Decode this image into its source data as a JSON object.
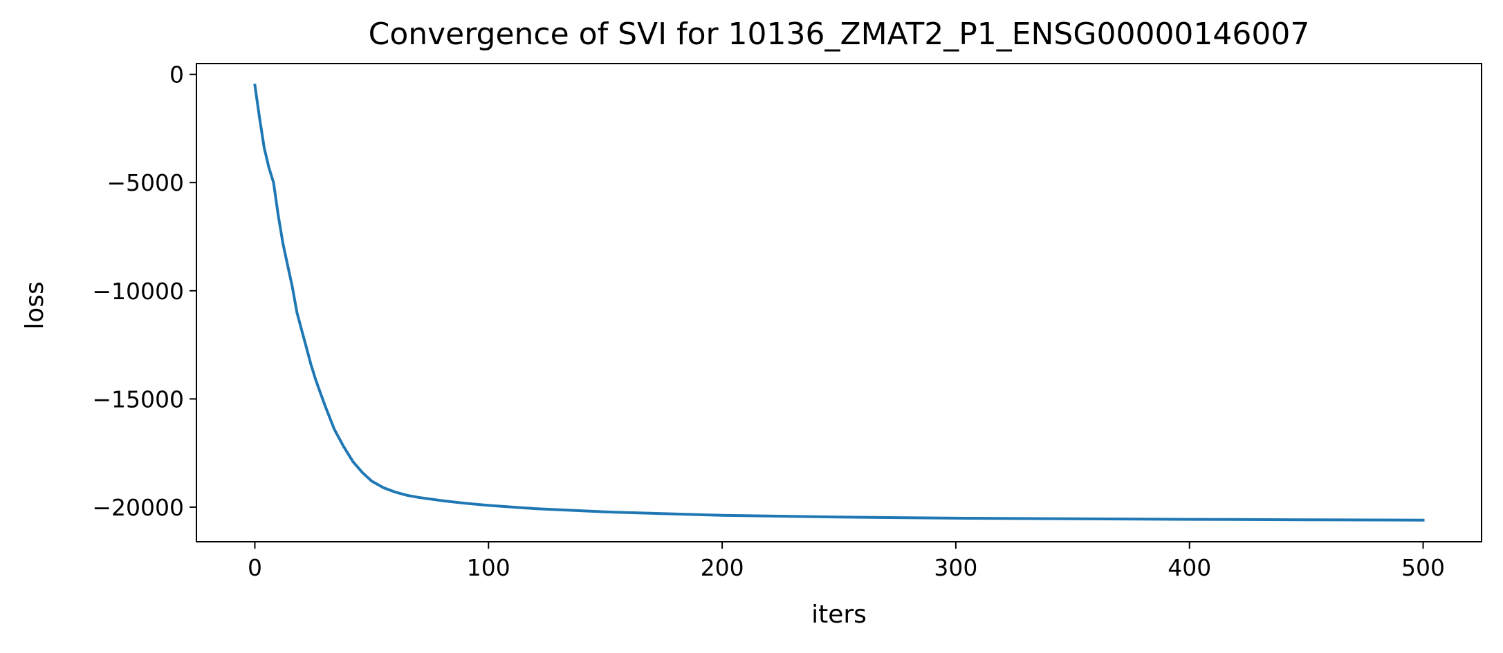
{
  "chart_data": {
    "type": "line",
    "title": "Convergence of SVI for 10136_ZMAT2_P1_ENSG00000146007",
    "xlabel": "iters",
    "ylabel": "loss",
    "xlim": [
      -25,
      525
    ],
    "ylim": [
      -21600,
      500
    ],
    "x_ticks": [
      0,
      100,
      200,
      300,
      400,
      500
    ],
    "x_tick_labels": [
      "0",
      "100",
      "200",
      "300",
      "400",
      "500"
    ],
    "y_ticks": [
      0,
      -5000,
      -10000,
      -15000,
      -20000
    ],
    "y_tick_labels": [
      "0",
      "−5000",
      "−10000",
      "−15000",
      "−20000"
    ],
    "grid": false,
    "legend": "none",
    "series": [
      {
        "color": "#1f77b4",
        "x": [
          0,
          2,
          4,
          6,
          8,
          10,
          12,
          14,
          16,
          18,
          20,
          22,
          24,
          26,
          28,
          30,
          34,
          38,
          42,
          46,
          50,
          55,
          60,
          65,
          70,
          80,
          90,
          100,
          120,
          150,
          200,
          250,
          300,
          350,
          400,
          450,
          500
        ],
        "y": [
          -500,
          -2000,
          -3400,
          -4300,
          -5000,
          -6500,
          -7800,
          -8800,
          -9800,
          -11000,
          -11800,
          -12600,
          -13400,
          -14100,
          -14700,
          -15300,
          -16400,
          -17200,
          -17900,
          -18400,
          -18800,
          -19100,
          -19300,
          -19450,
          -19550,
          -19700,
          -19820,
          -19920,
          -20070,
          -20220,
          -20380,
          -20460,
          -20510,
          -20540,
          -20565,
          -20585,
          -20600
        ]
      }
    ]
  }
}
